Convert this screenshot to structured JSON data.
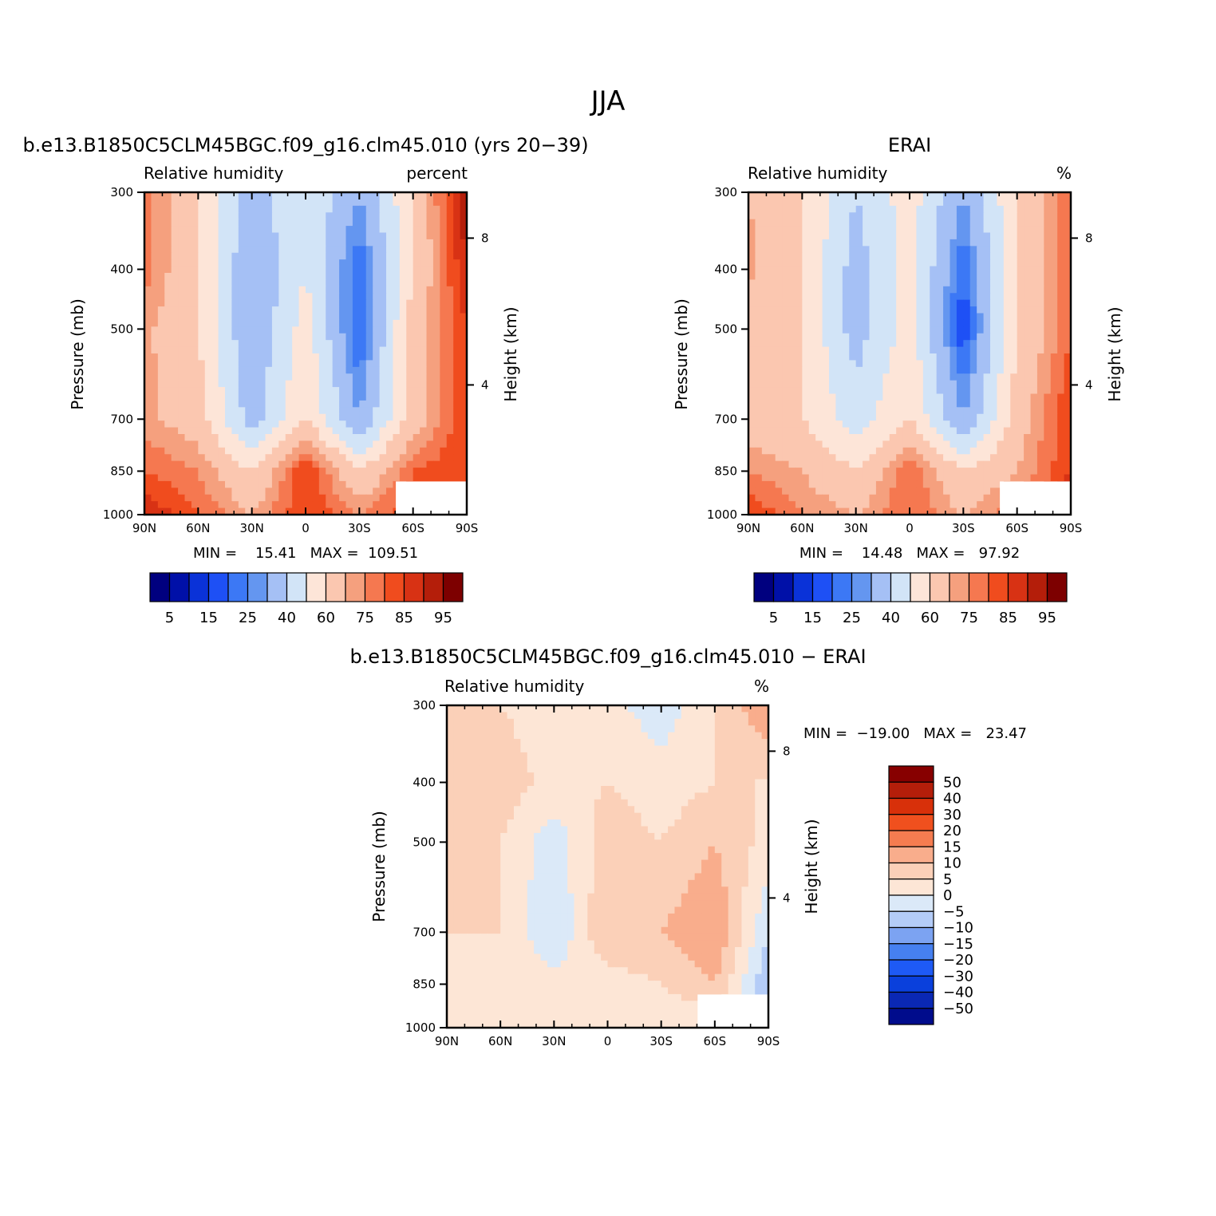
{
  "figure": {
    "title": "JJA"
  },
  "colorscales": {
    "abs": [
      "#00007f",
      "#0010a8",
      "#0a32d8",
      "#1e50f5",
      "#3c78f5",
      "#6496f0",
      "#a5c0f5",
      "#d2e4f7",
      "#fde5d8",
      "#fbc7b0",
      "#f5a07e",
      "#f57850",
      "#f04c1e",
      "#d83214",
      "#b41e0a",
      "#7d0000"
    ],
    "abs_labels": [
      "5",
      "15",
      "25",
      "40",
      "60",
      "75",
      "85",
      "95"
    ],
    "diff": [
      "#000c8c",
      "#0a28b4",
      "#0a40dc",
      "#1e5af5",
      "#4680f0",
      "#7ca3f2",
      "#b4ccf7",
      "#dbe9f8",
      "#fde6d6",
      "#fbd0b8",
      "#f9ad8c",
      "#f57c50",
      "#f0501e",
      "#d8300a",
      "#b41e0a",
      "#870000"
    ],
    "diff_labels": [
      "50",
      "40",
      "30",
      "20",
      "15",
      "10",
      "5",
      "0",
      "−5",
      "−10",
      "−15",
      "−20",
      "−30",
      "−40",
      "−50"
    ]
  },
  "panels": [
    {
      "id": "model",
      "title": "b.e13.B1850C5CLM45BGC.f09_g16.clm45.010 (yrs 20−39)",
      "left_label": "Relative humidity",
      "right_label": "percent",
      "ylabel": "Pressure (mb)",
      "right_axis_label": "Height (km)",
      "minmax": "MIN =    15.41   MAX =  109.51"
    },
    {
      "id": "obs",
      "title": "ERAI",
      "left_label": "Relative humidity",
      "right_label": "%",
      "ylabel": "Pressure (mb)",
      "right_axis_label": "Height (km)",
      "minmax": "MIN =    14.48   MAX =   97.92"
    },
    {
      "id": "diff",
      "title": "b.e13.B1850C5CLM45BGC.f09_g16.clm45.010 − ERAI",
      "left_label": "Relative humidity",
      "right_label": "%",
      "ylabel": "Pressure (mb)",
      "right_axis_label": "Height (km)",
      "minmax": "MIN =  −19.00   MAX =   23.47"
    }
  ],
  "axes": {
    "x_ticks": [
      "90N",
      "60N",
      "30N",
      "0",
      "30S",
      "60S",
      "90S"
    ],
    "y_ticks": [
      "300",
      "400",
      "500",
      "700",
      "850",
      "1000"
    ],
    "height_ticks": [
      "8",
      "4"
    ]
  },
  "chart_data": [
    {
      "type": "heatmap",
      "title": "b.e13.B1850C5CLM45BGC.f09_g16.clm45.010 (yrs 20−39)",
      "xlabel": "",
      "ylabel": "Pressure (mb)",
      "x": [
        90,
        60,
        30,
        0,
        -30,
        -60,
        -90
      ],
      "y": [
        300,
        400,
        500,
        700,
        850,
        1000
      ],
      "units": "percent",
      "min": 15.41,
      "max": 109.51,
      "values": [
        [
          78,
          60,
          35,
          50,
          30,
          60,
          95
        ],
        [
          78,
          60,
          30,
          50,
          20,
          60,
          90
        ],
        [
          72,
          60,
          30,
          55,
          18,
          65,
          85
        ],
        [
          72,
          65,
          35,
          60,
          30,
          65,
          85
        ],
        [
          80,
          75,
          60,
          85,
          60,
          80,
          85
        ],
        [
          90,
          80,
          70,
          85,
          75,
          85,
          85
        ]
      ]
    },
    {
      "type": "heatmap",
      "title": "ERAI",
      "xlabel": "",
      "ylabel": "Pressure (mb)",
      "x": [
        90,
        60,
        30,
        0,
        -30,
        -60,
        -90
      ],
      "y": [
        300,
        400,
        500,
        700,
        850,
        1000
      ],
      "units": "%",
      "min": 14.48,
      "max": 97.92,
      "values": [
        [
          70,
          60,
          40,
          55,
          30,
          60,
          80
        ],
        [
          72,
          60,
          35,
          55,
          20,
          60,
          80
        ],
        [
          65,
          60,
          35,
          55,
          15,
          60,
          80
        ],
        [
          65,
          60,
          45,
          60,
          30,
          65,
          85
        ],
        [
          75,
          70,
          60,
          80,
          60,
          70,
          85
        ],
        [
          85,
          75,
          70,
          80,
          70,
          80,
          95
        ]
      ]
    },
    {
      "type": "heatmap",
      "title": "b.e13.B1850C5CLM45BGC.f09_g16.clm45.010 − ERAI",
      "xlabel": "",
      "ylabel": "Pressure (mb)",
      "x": [
        90,
        60,
        30,
        0,
        -30,
        -60,
        -90
      ],
      "y": [
        300,
        400,
        500,
        700,
        850,
        1000
      ],
      "units": "%",
      "min": -19.0,
      "max": 23.47,
      "values": [
        [
          5,
          5,
          2,
          2,
          -3,
          5,
          15
        ],
        [
          5,
          8,
          3,
          5,
          2,
          5,
          5
        ],
        [
          5,
          5,
          -3,
          8,
          5,
          10,
          3
        ],
        [
          5,
          5,
          -5,
          10,
          10,
          15,
          -5
        ],
        [
          3,
          5,
          2,
          2,
          5,
          10,
          -10
        ],
        [
          3,
          3,
          5,
          5,
          2,
          0,
          -5
        ]
      ]
    }
  ]
}
